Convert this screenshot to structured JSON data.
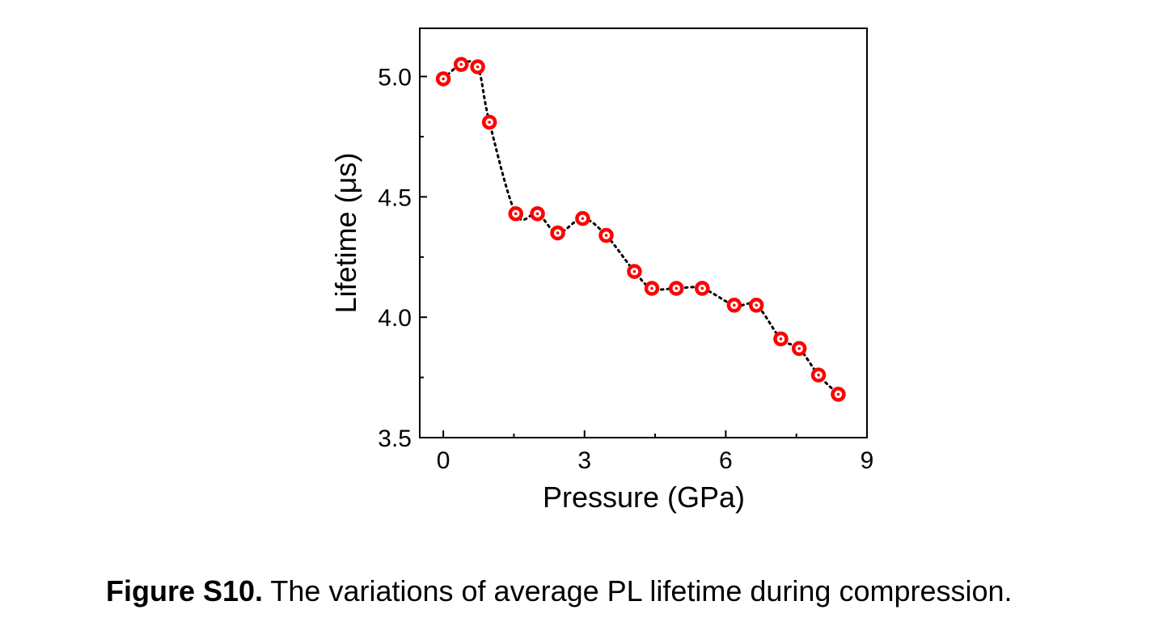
{
  "chart_data": {
    "type": "scatter",
    "xlabel": "Pressure (GPa)",
    "ylabel": "Lifetime (μs)",
    "xlim": [
      -0.5,
      9
    ],
    "ylim": [
      3.5,
      5.2
    ],
    "xticks": [
      0,
      3,
      6,
      9
    ],
    "xtick_labels": [
      "0",
      "3",
      "6",
      "9"
    ],
    "yticks": [
      3.5,
      4.0,
      4.5,
      5.0
    ],
    "ytick_labels": [
      "3.5",
      "4.0",
      "4.5",
      "5.0"
    ],
    "grid": false,
    "connector": "dotted",
    "marker_color": "#ff0000",
    "line_color": "#000000",
    "series": [
      {
        "x": [
          0.0,
          0.38,
          0.73,
          0.98,
          1.54,
          2.0,
          2.43,
          2.96,
          3.46,
          4.06,
          4.43,
          4.95,
          5.5,
          6.18,
          6.65,
          7.17,
          7.56,
          7.97,
          8.39
        ],
        "y": [
          4.99,
          5.05,
          5.04,
          4.81,
          4.43,
          4.43,
          4.35,
          4.41,
          4.34,
          4.19,
          4.12,
          4.12,
          4.12,
          4.05,
          4.05,
          3.91,
          3.87,
          3.76,
          3.68
        ]
      }
    ]
  },
  "caption": {
    "label": "Figure S10.",
    "text": " The variations of average PL lifetime during compression."
  }
}
